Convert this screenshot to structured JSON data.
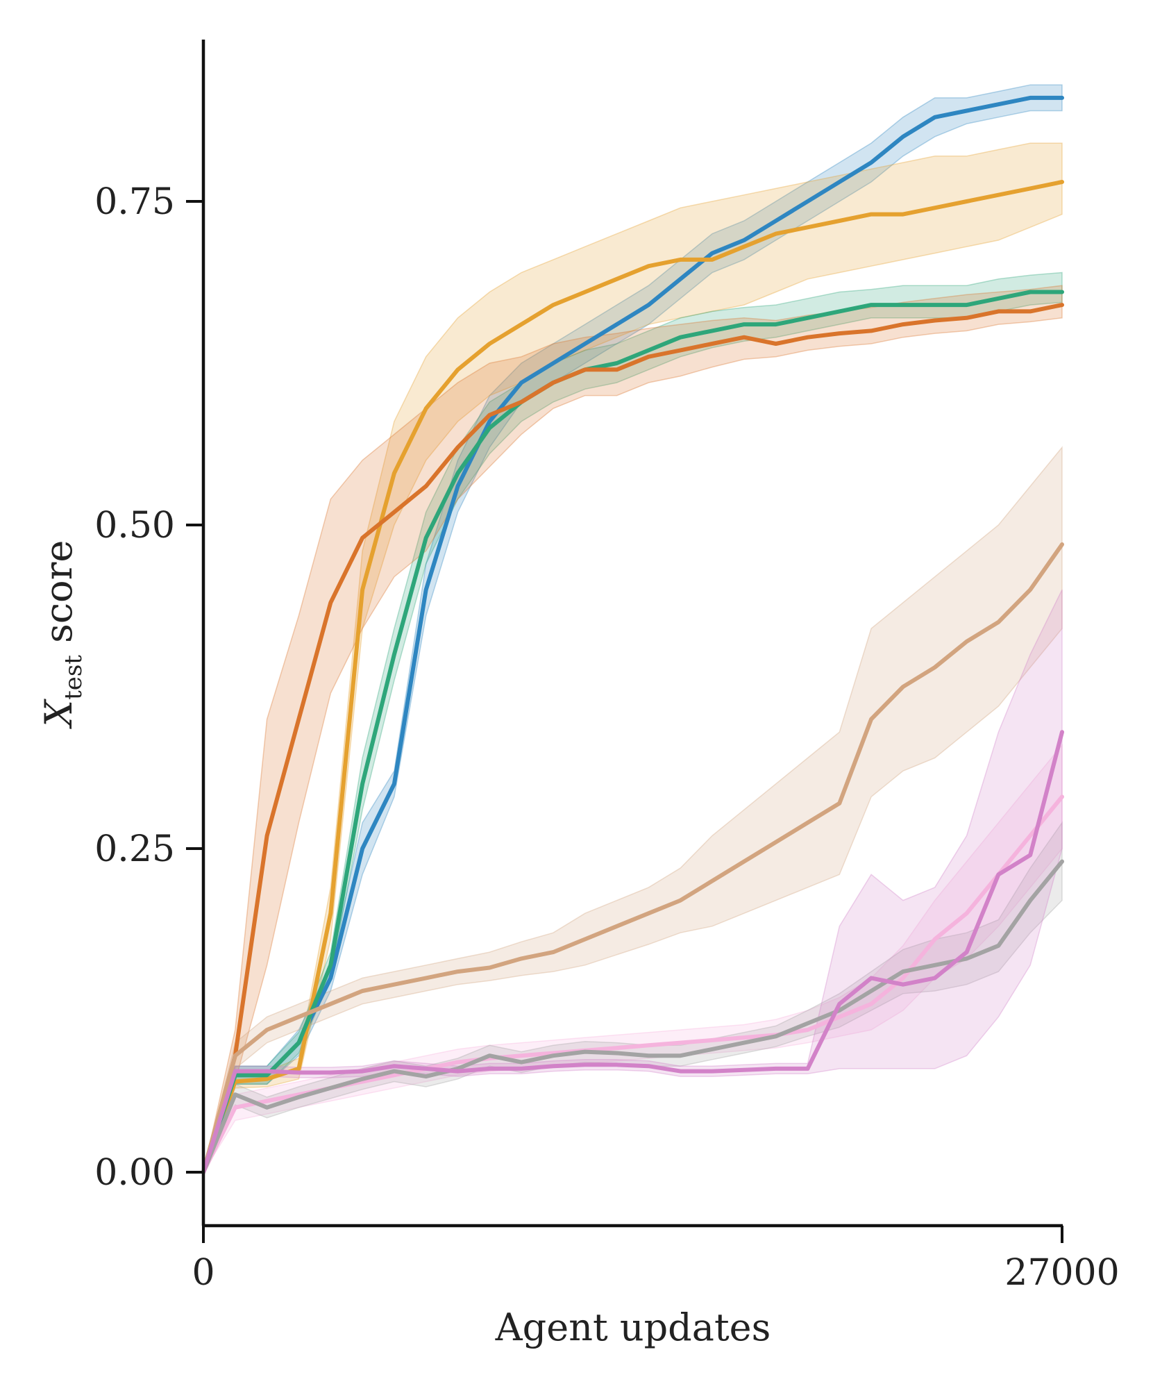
{
  "chart_data": {
    "type": "line",
    "title": "",
    "xlabel": "Agent updates",
    "ylabel_main": "X",
    "ylabel_sub": "test",
    "ylabel_suffix": " score",
    "xlim": [
      0,
      27000
    ],
    "ylim": [
      -0.04,
      0.88
    ],
    "xticks": [
      0,
      27000
    ],
    "xtick_labels": [
      "0",
      "27000"
    ],
    "yticks": [
      0.0,
      0.25,
      0.5,
      0.75
    ],
    "ytick_labels": [
      "0.00",
      "0.25",
      "0.50",
      "0.75"
    ],
    "grid": false,
    "legend": "none",
    "x": [
      0,
      1000,
      2000,
      3000,
      4000,
      5000,
      6000,
      7000,
      8000,
      9000,
      10000,
      11000,
      12000,
      13000,
      14000,
      15000,
      16000,
      17000,
      18000,
      19000,
      20000,
      21000,
      22000,
      23000,
      24000,
      25000,
      26000,
      27000
    ],
    "series": [
      {
        "name": "blue",
        "color": "#2e86c1",
        "values": [
          0.0,
          0.075,
          0.075,
          0.1,
          0.15,
          0.25,
          0.3,
          0.45,
          0.53,
          0.58,
          0.61,
          0.625,
          0.64,
          0.655,
          0.67,
          0.69,
          0.71,
          0.72,
          0.735,
          0.75,
          0.765,
          0.78,
          0.8,
          0.815,
          0.82,
          0.825,
          0.83,
          0.83
        ],
        "lower": [
          0.0,
          0.068,
          0.068,
          0.09,
          0.14,
          0.23,
          0.29,
          0.43,
          0.51,
          0.56,
          0.595,
          0.61,
          0.625,
          0.64,
          0.655,
          0.675,
          0.695,
          0.705,
          0.72,
          0.735,
          0.75,
          0.765,
          0.785,
          0.8,
          0.81,
          0.815,
          0.82,
          0.82
        ],
        "upper": [
          0.0,
          0.082,
          0.082,
          0.11,
          0.16,
          0.27,
          0.31,
          0.47,
          0.55,
          0.6,
          0.625,
          0.64,
          0.655,
          0.67,
          0.685,
          0.705,
          0.725,
          0.735,
          0.75,
          0.765,
          0.78,
          0.795,
          0.815,
          0.83,
          0.83,
          0.835,
          0.84,
          0.84
        ]
      },
      {
        "name": "yellow-orange",
        "color": "#e5a12f",
        "values": [
          0.0,
          0.07,
          0.072,
          0.08,
          0.2,
          0.45,
          0.54,
          0.59,
          0.62,
          0.64,
          0.655,
          0.67,
          0.68,
          0.69,
          0.7,
          0.705,
          0.705,
          0.715,
          0.725,
          0.73,
          0.735,
          0.74,
          0.74,
          0.745,
          0.75,
          0.755,
          0.76,
          0.765
        ],
        "lower": [
          0.0,
          0.065,
          0.066,
          0.072,
          0.18,
          0.42,
          0.5,
          0.55,
          0.58,
          0.6,
          0.61,
          0.625,
          0.635,
          0.645,
          0.655,
          0.66,
          0.665,
          0.67,
          0.68,
          0.69,
          0.695,
          0.7,
          0.705,
          0.71,
          0.715,
          0.72,
          0.73,
          0.74
        ],
        "upper": [
          0.0,
          0.075,
          0.078,
          0.088,
          0.22,
          0.48,
          0.58,
          0.63,
          0.66,
          0.68,
          0.695,
          0.705,
          0.715,
          0.725,
          0.735,
          0.745,
          0.75,
          0.755,
          0.76,
          0.765,
          0.77,
          0.775,
          0.78,
          0.785,
          0.785,
          0.79,
          0.795,
          0.795
        ]
      },
      {
        "name": "green",
        "color": "#2ea67a",
        "values": [
          0.0,
          0.075,
          0.075,
          0.1,
          0.16,
          0.3,
          0.4,
          0.49,
          0.54,
          0.575,
          0.595,
          0.61,
          0.62,
          0.625,
          0.635,
          0.645,
          0.65,
          0.655,
          0.655,
          0.66,
          0.665,
          0.67,
          0.67,
          0.67,
          0.67,
          0.675,
          0.68,
          0.68
        ],
        "lower": [
          0.0,
          0.068,
          0.068,
          0.092,
          0.15,
          0.28,
          0.38,
          0.47,
          0.52,
          0.555,
          0.58,
          0.595,
          0.605,
          0.61,
          0.62,
          0.63,
          0.637,
          0.642,
          0.645,
          0.65,
          0.655,
          0.66,
          0.66,
          0.66,
          0.66,
          0.665,
          0.67,
          0.672
        ],
        "upper": [
          0.0,
          0.082,
          0.082,
          0.108,
          0.17,
          0.32,
          0.42,
          0.51,
          0.56,
          0.595,
          0.61,
          0.625,
          0.635,
          0.64,
          0.65,
          0.66,
          0.665,
          0.668,
          0.67,
          0.675,
          0.68,
          0.682,
          0.685,
          0.685,
          0.685,
          0.69,
          0.693,
          0.695
        ]
      },
      {
        "name": "orange",
        "color": "#d9742b",
        "values": [
          0.0,
          0.09,
          0.26,
          0.35,
          0.44,
          0.49,
          0.51,
          0.53,
          0.56,
          0.585,
          0.595,
          0.61,
          0.62,
          0.62,
          0.63,
          0.635,
          0.64,
          0.645,
          0.64,
          0.645,
          0.648,
          0.65,
          0.655,
          0.658,
          0.66,
          0.665,
          0.665,
          0.67
        ],
        "lower": [
          0.0,
          0.07,
          0.16,
          0.27,
          0.37,
          0.42,
          0.46,
          0.48,
          0.52,
          0.545,
          0.57,
          0.59,
          0.6,
          0.6,
          0.61,
          0.615,
          0.622,
          0.628,
          0.63,
          0.635,
          0.638,
          0.64,
          0.645,
          0.648,
          0.65,
          0.655,
          0.657,
          0.66
        ],
        "upper": [
          0.0,
          0.11,
          0.35,
          0.43,
          0.52,
          0.55,
          0.57,
          0.59,
          0.61,
          0.625,
          0.63,
          0.64,
          0.645,
          0.648,
          0.652,
          0.655,
          0.658,
          0.66,
          0.658,
          0.662,
          0.665,
          0.668,
          0.672,
          0.675,
          0.678,
          0.68,
          0.682,
          0.685
        ]
      },
      {
        "name": "tan",
        "color": "#d2a47f",
        "values": [
          0.0,
          0.09,
          0.11,
          0.12,
          0.13,
          0.14,
          0.145,
          0.15,
          0.155,
          0.158,
          0.165,
          0.17,
          0.18,
          0.19,
          0.2,
          0.21,
          0.225,
          0.24,
          0.255,
          0.27,
          0.285,
          0.35,
          0.375,
          0.39,
          0.41,
          0.425,
          0.45,
          0.485
        ],
        "lower": [
          0.0,
          0.08,
          0.1,
          0.11,
          0.12,
          0.13,
          0.135,
          0.14,
          0.145,
          0.148,
          0.152,
          0.155,
          0.16,
          0.168,
          0.176,
          0.185,
          0.19,
          0.2,
          0.21,
          0.22,
          0.23,
          0.29,
          0.31,
          0.32,
          0.34,
          0.36,
          0.39,
          0.42
        ],
        "upper": [
          0.0,
          0.1,
          0.12,
          0.13,
          0.14,
          0.15,
          0.155,
          0.16,
          0.165,
          0.17,
          0.178,
          0.185,
          0.2,
          0.21,
          0.22,
          0.235,
          0.26,
          0.28,
          0.3,
          0.32,
          0.34,
          0.42,
          0.44,
          0.46,
          0.48,
          0.5,
          0.53,
          0.56
        ]
      },
      {
        "name": "pink",
        "color": "#f5b3dd",
        "values": [
          0.0,
          0.05,
          0.055,
          0.06,
          0.065,
          0.07,
          0.075,
          0.08,
          0.085,
          0.088,
          0.09,
          0.092,
          0.094,
          0.096,
          0.098,
          0.1,
          0.102,
          0.104,
          0.106,
          0.11,
          0.12,
          0.13,
          0.15,
          0.18,
          0.2,
          0.23,
          0.26,
          0.29
        ],
        "lower": [
          0.0,
          0.04,
          0.045,
          0.05,
          0.055,
          0.06,
          0.065,
          0.07,
          0.075,
          0.078,
          0.08,
          0.082,
          0.084,
          0.086,
          0.088,
          0.09,
          0.092,
          0.094,
          0.096,
          0.1,
          0.105,
          0.11,
          0.125,
          0.15,
          0.165,
          0.19,
          0.22,
          0.25
        ],
        "upper": [
          0.0,
          0.06,
          0.065,
          0.07,
          0.075,
          0.08,
          0.085,
          0.09,
          0.095,
          0.098,
          0.1,
          0.102,
          0.104,
          0.106,
          0.108,
          0.11,
          0.112,
          0.114,
          0.118,
          0.125,
          0.135,
          0.15,
          0.175,
          0.21,
          0.24,
          0.27,
          0.3,
          0.33
        ]
      },
      {
        "name": "gray",
        "color": "#a3a3a3",
        "values": [
          0.0,
          0.06,
          0.05,
          0.058,
          0.065,
          0.072,
          0.078,
          0.074,
          0.08,
          0.09,
          0.085,
          0.09,
          0.093,
          0.092,
          0.09,
          0.09,
          0.095,
          0.1,
          0.105,
          0.115,
          0.125,
          0.14,
          0.155,
          0.16,
          0.165,
          0.175,
          0.21,
          0.24
        ],
        "lower": [
          0.0,
          0.052,
          0.042,
          0.05,
          0.057,
          0.064,
          0.07,
          0.066,
          0.072,
          0.082,
          0.077,
          0.082,
          0.085,
          0.084,
          0.082,
          0.082,
          0.087,
          0.092,
          0.097,
          0.105,
          0.112,
          0.125,
          0.138,
          0.14,
          0.145,
          0.155,
          0.185,
          0.21
        ],
        "upper": [
          0.0,
          0.068,
          0.058,
          0.066,
          0.073,
          0.08,
          0.086,
          0.082,
          0.088,
          0.098,
          0.093,
          0.098,
          0.101,
          0.1,
          0.098,
          0.098,
          0.103,
          0.108,
          0.113,
          0.125,
          0.138,
          0.155,
          0.172,
          0.18,
          0.185,
          0.195,
          0.235,
          0.27
        ]
      },
      {
        "name": "magenta",
        "color": "#d282c8",
        "values": [
          0.0,
          0.078,
          0.078,
          0.077,
          0.077,
          0.078,
          0.082,
          0.08,
          0.078,
          0.08,
          0.08,
          0.082,
          0.083,
          0.083,
          0.082,
          0.078,
          0.078,
          0.079,
          0.08,
          0.08,
          0.13,
          0.15,
          0.145,
          0.15,
          0.17,
          0.23,
          0.245,
          0.34
        ],
        "lower": [
          0.0,
          0.074,
          0.074,
          0.073,
          0.073,
          0.074,
          0.078,
          0.076,
          0.074,
          0.076,
          0.076,
          0.078,
          0.079,
          0.079,
          0.078,
          0.074,
          0.074,
          0.075,
          0.076,
          0.076,
          0.08,
          0.08,
          0.08,
          0.08,
          0.09,
          0.12,
          0.16,
          0.25
        ],
        "upper": [
          0.0,
          0.082,
          0.082,
          0.081,
          0.081,
          0.082,
          0.086,
          0.084,
          0.082,
          0.084,
          0.084,
          0.086,
          0.087,
          0.087,
          0.086,
          0.082,
          0.082,
          0.083,
          0.084,
          0.084,
          0.19,
          0.23,
          0.21,
          0.22,
          0.26,
          0.34,
          0.4,
          0.45
        ]
      }
    ]
  }
}
